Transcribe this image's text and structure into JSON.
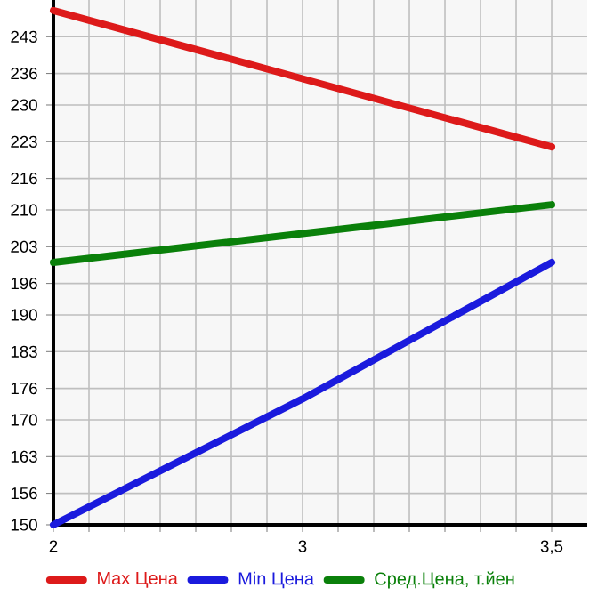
{
  "chart_data": {
    "type": "line",
    "categories": [
      "2",
      "3",
      "3,5"
    ],
    "series": [
      {
        "name": "Max Цена",
        "color": "#dd1a1a",
        "values": [
          248,
          235,
          222
        ]
      },
      {
        "name": "Min Цена",
        "color": "#1a1add",
        "values": [
          150,
          174,
          200
        ]
      },
      {
        "name": "Сред.Цена, т.йен",
        "color": "#0a800a",
        "values": [
          200,
          205.5,
          211
        ]
      }
    ],
    "ylim": [
      150,
      250
    ],
    "yticks": [
      150,
      156,
      163,
      170,
      176,
      183,
      190,
      196,
      203,
      210,
      216,
      223,
      230,
      236,
      243
    ],
    "grid": true,
    "legend": "bottom"
  }
}
